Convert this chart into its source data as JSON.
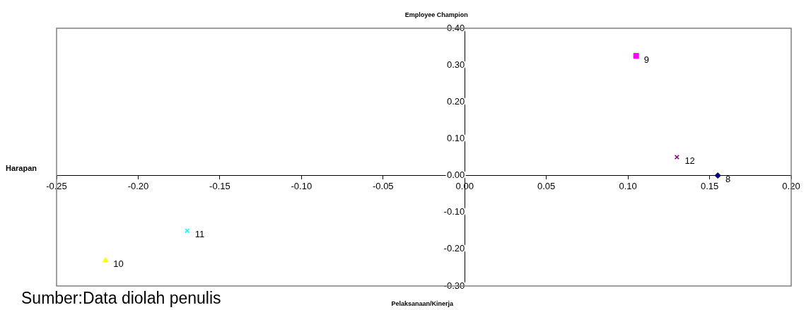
{
  "chart_data": {
    "type": "scatter",
    "title": "Employee Champion",
    "xlabel": "Pelaksanaan/Kinerja",
    "ylabel": "Harapan",
    "annotations": [
      "Sumber:Data diolah penulis"
    ],
    "xlim": [
      -0.25,
      0.2
    ],
    "xticks": [
      {
        "value": -0.25,
        "label": "-0.25"
      },
      {
        "value": -0.2,
        "label": "-0.20"
      },
      {
        "value": -0.15,
        "label": "-0.15"
      },
      {
        "value": -0.1,
        "label": "-0.10"
      },
      {
        "value": -0.05,
        "label": "-0.05"
      },
      {
        "value": 0,
        "label": "0.00"
      },
      {
        "value": 0.05,
        "label": "0.05"
      },
      {
        "value": 0.1,
        "label": "0.10"
      },
      {
        "value": 0.15,
        "label": "0.15"
      },
      {
        "value": 0.2,
        "label": "0.20"
      }
    ],
    "ylim": [
      -0.3,
      0.4
    ],
    "yticks": [
      {
        "value": -0.3,
        "label": "-0.30"
      },
      {
        "value": -0.2,
        "label": "-0.20"
      },
      {
        "value": -0.1,
        "label": "-0.10"
      },
      {
        "value": 0,
        "label": "0.00"
      },
      {
        "value": 0.1,
        "label": "0.10"
      },
      {
        "value": 0.2,
        "label": "0.20"
      },
      {
        "value": 0.3,
        "label": "0.30"
      },
      {
        "value": 0.4,
        "label": "0.40"
      }
    ],
    "grid": false,
    "legend": false,
    "series": [
      {
        "name": "8",
        "color": "#000080",
        "marker": "diamond",
        "x": [
          0.155
        ],
        "values": [
          0
        ]
      },
      {
        "name": "9",
        "color": "#ff00ff",
        "marker": "square",
        "x": [
          0.105
        ],
        "values": [
          0.325
        ]
      },
      {
        "name": "10",
        "color": "#ffff00",
        "marker": "triangle",
        "x": [
          -0.22
        ],
        "values": [
          -0.23
        ]
      },
      {
        "name": "11",
        "color": "#00ffff",
        "marker": "cross",
        "x": [
          -0.17
        ],
        "values": [
          -0.15
        ]
      },
      {
        "name": "12",
        "color": "#800080",
        "marker": "cross",
        "x": [
          0.13
        ],
        "values": [
          0.05
        ]
      }
    ]
  }
}
